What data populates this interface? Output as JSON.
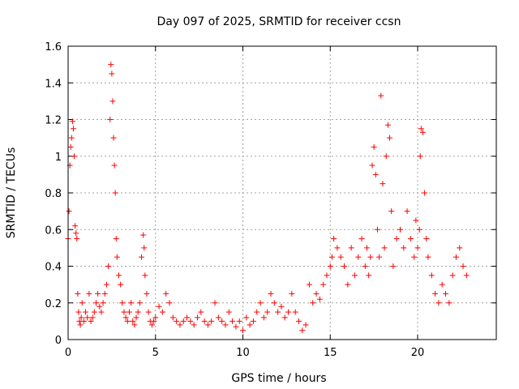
{
  "chart_data": {
    "type": "scatter",
    "title": "Day 097 of 2025, SRMTID for receiver ccsn",
    "xlabel": "GPS time / hours",
    "ylabel": "SRMTID / TECUs",
    "xlim": [
      0,
      24.5
    ],
    "ylim": [
      0,
      1.6
    ],
    "xticks": [
      0,
      5,
      10,
      15,
      20
    ],
    "xtick_labels": [
      "0",
      "5",
      "10",
      "15",
      "20"
    ],
    "yticks": [
      0,
      0.2,
      0.4,
      0.6,
      0.8,
      1,
      1.2,
      1.4,
      1.6
    ],
    "ytick_labels": [
      "0",
      "0.2",
      "0.4",
      "0.6",
      "0.8",
      "1",
      "1.2",
      "1.4",
      "1.6"
    ],
    "grid": true,
    "marker": "+",
    "color": "#ff0000",
    "series": [
      {
        "name": "SRMTID",
        "x": [
          0.0,
          0.05,
          0.1,
          0.15,
          0.2,
          0.25,
          0.3,
          0.35,
          0.4,
          0.45,
          0.5,
          0.55,
          0.6,
          0.65,
          0.7,
          0.75,
          0.8,
          0.9,
          1.0,
          1.1,
          1.2,
          1.3,
          1.4,
          1.5,
          1.6,
          1.7,
          1.8,
          1.9,
          2.0,
          2.1,
          2.2,
          2.3,
          2.4,
          2.45,
          2.5,
          2.55,
          2.6,
          2.65,
          2.7,
          2.75,
          2.8,
          2.9,
          3.0,
          3.1,
          3.2,
          3.3,
          3.4,
          3.5,
          3.6,
          3.7,
          3.8,
          3.9,
          4.0,
          4.1,
          4.2,
          4.3,
          4.35,
          4.4,
          4.5,
          4.6,
          4.7,
          4.8,
          4.9,
          5.0,
          5.2,
          5.4,
          5.6,
          5.8,
          6.0,
          6.2,
          6.4,
          6.6,
          6.8,
          7.0,
          7.2,
          7.4,
          7.6,
          7.8,
          8.0,
          8.2,
          8.4,
          8.6,
          8.8,
          9.0,
          9.2,
          9.4,
          9.6,
          9.8,
          10.0,
          10.2,
          10.4,
          10.6,
          10.8,
          11.0,
          11.2,
          11.4,
          11.6,
          11.8,
          12.0,
          12.2,
          12.4,
          12.6,
          12.8,
          13.0,
          13.2,
          13.4,
          13.6,
          13.8,
          14.0,
          14.2,
          14.4,
          14.6,
          14.8,
          15.0,
          15.1,
          15.2,
          15.4,
          15.6,
          15.8,
          16.0,
          16.2,
          16.4,
          16.6,
          16.8,
          17.0,
          17.1,
          17.2,
          17.3,
          17.4,
          17.5,
          17.6,
          17.7,
          17.8,
          17.9,
          18.0,
          18.1,
          18.2,
          18.3,
          18.4,
          18.5,
          18.6,
          18.8,
          19.0,
          19.2,
          19.4,
          19.6,
          19.8,
          19.9,
          20.0,
          20.1,
          20.15,
          20.2,
          20.3,
          20.4,
          20.5,
          20.6,
          20.8,
          21.0,
          21.2,
          21.4,
          21.6,
          21.8,
          22.0,
          22.2,
          22.4,
          22.6,
          22.8
        ],
        "y": [
          0.55,
          0.7,
          0.95,
          1.05,
          1.1,
          1.19,
          1.15,
          1.0,
          0.62,
          0.58,
          0.55,
          0.25,
          0.15,
          0.1,
          0.08,
          0.12,
          0.2,
          0.1,
          0.15,
          0.12,
          0.25,
          0.1,
          0.12,
          0.15,
          0.2,
          0.25,
          0.18,
          0.15,
          0.2,
          0.25,
          0.3,
          0.4,
          1.2,
          1.5,
          1.45,
          1.3,
          1.1,
          0.95,
          0.8,
          0.55,
          0.45,
          0.35,
          0.3,
          0.2,
          0.15,
          0.12,
          0.1,
          0.15,
          0.2,
          0.1,
          0.08,
          0.12,
          0.15,
          0.2,
          0.45,
          0.57,
          0.5,
          0.35,
          0.25,
          0.15,
          0.1,
          0.08,
          0.1,
          0.12,
          0.18,
          0.15,
          0.25,
          0.2,
          0.12,
          0.1,
          0.08,
          0.1,
          0.12,
          0.1,
          0.08,
          0.12,
          0.15,
          0.1,
          0.08,
          0.1,
          0.2,
          0.12,
          0.1,
          0.08,
          0.15,
          0.1,
          0.07,
          0.1,
          0.05,
          0.12,
          0.08,
          0.1,
          0.15,
          0.2,
          0.12,
          0.15,
          0.25,
          0.2,
          0.15,
          0.18,
          0.12,
          0.15,
          0.25,
          0.15,
          0.1,
          0.05,
          0.08,
          0.3,
          0.2,
          0.25,
          0.22,
          0.3,
          0.35,
          0.4,
          0.45,
          0.55,
          0.5,
          0.45,
          0.4,
          0.3,
          0.5,
          0.35,
          0.45,
          0.55,
          0.4,
          0.5,
          0.35,
          0.45,
          0.95,
          1.05,
          0.9,
          0.6,
          0.45,
          1.33,
          0.85,
          0.5,
          1.0,
          1.17,
          1.1,
          0.7,
          0.4,
          0.55,
          0.6,
          0.5,
          0.7,
          0.55,
          0.45,
          0.65,
          0.5,
          0.6,
          1.0,
          1.15,
          1.13,
          0.8,
          0.55,
          0.45,
          0.35,
          0.25,
          0.2,
          0.3,
          0.25,
          0.2,
          0.35,
          0.45,
          0.5,
          0.4,
          0.35
        ]
      }
    ]
  }
}
